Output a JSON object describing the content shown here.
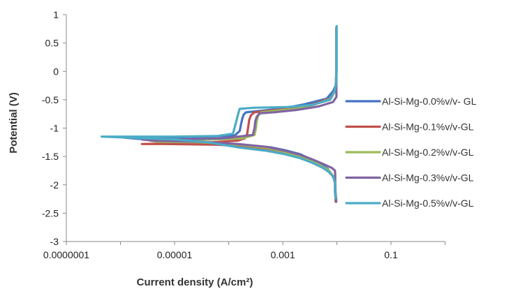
{
  "chart_data": {
    "type": "line",
    "title": "",
    "xlabel": "Current density (A/cm²)",
    "ylabel": "Potential (V)",
    "x_scale": "log",
    "xlim": [
      1e-07,
      1
    ],
    "ylim": [
      -3,
      1
    ],
    "x_ticks": [
      {
        "value": 1e-07,
        "label": "0.0000001"
      },
      {
        "value": 1e-05,
        "label": "0.00001"
      },
      {
        "value": 0.001,
        "label": "0.001"
      },
      {
        "value": 0.1,
        "label": "0.1"
      }
    ],
    "y_ticks": [
      {
        "value": 1,
        "label": "1"
      },
      {
        "value": 0.5,
        "label": "0.5"
      },
      {
        "value": 0,
        "label": "0"
      },
      {
        "value": -0.5,
        "label": "-0.5"
      },
      {
        "value": -1,
        "label": "-1"
      },
      {
        "value": -1.5,
        "label": "-1.5"
      },
      {
        "value": -2,
        "label": "-2"
      },
      {
        "value": -2.5,
        "label": "-2.5"
      },
      {
        "value": -3,
        "label": "-3"
      }
    ],
    "grid": false,
    "legend_position": "right",
    "series": [
      {
        "name": "Al-Si-Mg-0.0%v/v- GL",
        "color": "#4472C4",
        "points": [
          [
            0.0095,
            -2.28
          ],
          [
            0.0092,
            -2.1
          ],
          [
            0.0092,
            -1.95
          ],
          [
            0.0085,
            -1.85
          ],
          [
            0.0068,
            -1.72
          ],
          [
            0.005,
            -1.64
          ],
          [
            0.0033,
            -1.55
          ],
          [
            0.0021,
            -1.46
          ],
          [
            0.0011,
            -1.39
          ],
          [
            0.0006,
            -1.34
          ],
          [
            0.0002,
            -1.3
          ],
          [
            5e-05,
            -1.26
          ],
          [
            1e-05,
            -1.22
          ],
          [
            2.2e-06,
            -1.19
          ],
          [
            1.2e-06,
            -1.17
          ],
          [
            2.5e-06,
            -1.17
          ],
          [
            1.2e-05,
            -1.16
          ],
          [
            5e-05,
            -1.15
          ],
          [
            0.00013,
            -1.13
          ],
          [
            0.00016,
            -1.05
          ],
          [
            0.00017,
            -0.92
          ],
          [
            0.00018,
            -0.82
          ],
          [
            0.00019,
            -0.76
          ],
          [
            0.00021,
            -0.72
          ],
          [
            0.00035,
            -0.7
          ],
          [
            0.0009,
            -0.66
          ],
          [
            0.0025,
            -0.58
          ],
          [
            0.0065,
            -0.48
          ],
          [
            0.0085,
            -0.35
          ],
          [
            0.0095,
            -0.25
          ],
          [
            0.0098,
            0.0
          ],
          [
            0.0098,
            0.4
          ],
          [
            0.0098,
            0.75
          ]
        ]
      },
      {
        "name": "Al-Si-Mg-0.1%v/v-GL",
        "color": "#C0504D",
        "points": [
          [
            0.0095,
            -2.3
          ],
          [
            0.0093,
            -2.1
          ],
          [
            0.0092,
            -1.95
          ],
          [
            0.0085,
            -1.85
          ],
          [
            0.0066,
            -1.74
          ],
          [
            0.0045,
            -1.66
          ],
          [
            0.003,
            -1.58
          ],
          [
            0.0019,
            -1.5
          ],
          [
            0.001,
            -1.42
          ],
          [
            0.0005,
            -1.36
          ],
          [
            0.00015,
            -1.31
          ],
          [
            5e-05,
            -1.29
          ],
          [
            6.2e-06,
            -1.28
          ],
          [
            2.5e-06,
            -1.28
          ],
          [
            1e-05,
            -1.27
          ],
          [
            5e-05,
            -1.25
          ],
          [
            0.00015,
            -1.22
          ],
          [
            0.0002,
            -1.18
          ],
          [
            0.00022,
            -1.1
          ],
          [
            0.00023,
            -0.98
          ],
          [
            0.00024,
            -0.85
          ],
          [
            0.00026,
            -0.77
          ],
          [
            0.0003,
            -0.72
          ],
          [
            0.0006,
            -0.69
          ],
          [
            0.0015,
            -0.65
          ],
          [
            0.0035,
            -0.58
          ],
          [
            0.0075,
            -0.48
          ],
          [
            0.009,
            -0.36
          ],
          [
            0.0095,
            -0.28
          ],
          [
            0.0098,
            0.0
          ],
          [
            0.0098,
            0.4
          ],
          [
            0.0098,
            0.76
          ]
        ]
      },
      {
        "name": "Al-Si-Mg-0.2%v/v-GL",
        "color": "#9BBB59",
        "points": [
          [
            0.0098,
            -2.27
          ],
          [
            0.0093,
            -2.1
          ],
          [
            0.0092,
            -1.95
          ],
          [
            0.0086,
            -1.85
          ],
          [
            0.007,
            -1.74
          ],
          [
            0.005,
            -1.66
          ],
          [
            0.0033,
            -1.58
          ],
          [
            0.002,
            -1.5
          ],
          [
            0.0011,
            -1.42
          ],
          [
            0.0005,
            -1.35
          ],
          [
            0.00015,
            -1.29
          ],
          [
            3e-05,
            -1.25
          ],
          [
            5e-06,
            -1.24
          ],
          [
            3.5e-06,
            -1.22
          ],
          [
            1e-05,
            -1.21
          ],
          [
            5e-05,
            -1.2
          ],
          [
            0.00018,
            -1.18
          ],
          [
            0.0003,
            -1.12
          ],
          [
            0.00032,
            -1.0
          ],
          [
            0.00033,
            -0.88
          ],
          [
            0.00035,
            -0.78
          ],
          [
            0.0004,
            -0.72
          ],
          [
            0.0008,
            -0.69
          ],
          [
            0.0018,
            -0.66
          ],
          [
            0.004,
            -0.58
          ],
          [
            0.0078,
            -0.48
          ],
          [
            0.009,
            -0.36
          ],
          [
            0.0096,
            -0.28
          ],
          [
            0.0098,
            0.0
          ],
          [
            0.0098,
            0.4
          ],
          [
            0.0098,
            0.77
          ]
        ]
      },
      {
        "name": "Al-Si-Mg-0.3%v/v-GL",
        "color": "#8064A2",
        "points": [
          [
            0.0097,
            -2.3
          ],
          [
            0.0094,
            -2.1
          ],
          [
            0.0093,
            -1.95
          ],
          [
            0.0093,
            -1.82
          ],
          [
            0.0092,
            -1.75
          ],
          [
            0.008,
            -1.7
          ],
          [
            0.0055,
            -1.63
          ],
          [
            0.0035,
            -1.55
          ],
          [
            0.0021,
            -1.47
          ],
          [
            0.0011,
            -1.4
          ],
          [
            0.0005,
            -1.33
          ],
          [
            0.00015,
            -1.28
          ],
          [
            3e-05,
            -1.24
          ],
          [
            4e-06,
            -1.22
          ],
          [
            2.5e-06,
            -1.2
          ],
          [
            1e-05,
            -1.2
          ],
          [
            8e-05,
            -1.18
          ],
          [
            0.00028,
            -1.12
          ],
          [
            0.0003,
            -1.0
          ],
          [
            0.00031,
            -0.88
          ],
          [
            0.00033,
            -0.8
          ],
          [
            0.00037,
            -0.74
          ],
          [
            0.0007,
            -0.72
          ],
          [
            0.0018,
            -0.68
          ],
          [
            0.0045,
            -0.62
          ],
          [
            0.0085,
            -0.54
          ],
          [
            0.0098,
            -0.45
          ],
          [
            0.0098,
            -0.2
          ],
          [
            0.0098,
            0.2
          ],
          [
            0.0098,
            0.78
          ]
        ]
      },
      {
        "name": "Al-Si-Mg-0.5%v/v-GL",
        "color": "#4BACC6",
        "points": [
          [
            0.0095,
            -2.24
          ],
          [
            0.0093,
            -2.1
          ],
          [
            0.0092,
            -1.98
          ],
          [
            0.0088,
            -1.88
          ],
          [
            0.0075,
            -1.79
          ],
          [
            0.0055,
            -1.7
          ],
          [
            0.0035,
            -1.61
          ],
          [
            0.0021,
            -1.53
          ],
          [
            0.0011,
            -1.46
          ],
          [
            0.0005,
            -1.4
          ],
          [
            0.00015,
            -1.34
          ],
          [
            4e-05,
            -1.25
          ],
          [
            1e-05,
            -1.2
          ],
          [
            1.5e-06,
            -1.17
          ],
          [
            4.5e-07,
            -1.15
          ],
          [
            2e-06,
            -1.15
          ],
          [
            1e-05,
            -1.15
          ],
          [
            6e-05,
            -1.14
          ],
          [
            0.00012,
            -1.1
          ],
          [
            0.00013,
            -0.98
          ],
          [
            0.00014,
            -0.86
          ],
          [
            0.00015,
            -0.75
          ],
          [
            0.00016,
            -0.66
          ],
          [
            0.0003,
            -0.64
          ],
          [
            0.0012,
            -0.63
          ],
          [
            0.0035,
            -0.59
          ],
          [
            0.0075,
            -0.5
          ],
          [
            0.009,
            -0.35
          ],
          [
            0.0096,
            -0.25
          ],
          [
            0.0099,
            0.0
          ],
          [
            0.0099,
            0.4
          ],
          [
            0.0099,
            0.8
          ]
        ]
      }
    ]
  }
}
